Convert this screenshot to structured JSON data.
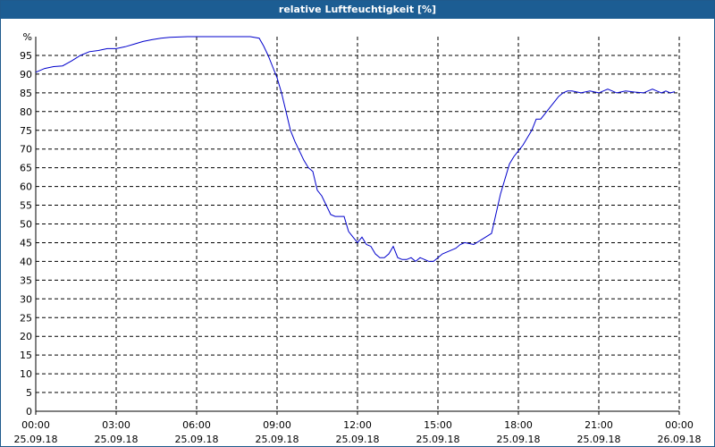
{
  "window": {
    "title": "relative Luftfeuchtigkeit [%]"
  },
  "colors": {
    "title_bar": "#1c5d93",
    "line": "#0000cc",
    "grid": "#000000",
    "background": "#ffffff"
  },
  "chart_data": {
    "type": "line",
    "title": "relative Luftfeuchtigkeit [%]",
    "ylabel": "%",
    "xlabel": "",
    "ylim": [
      0,
      100
    ],
    "y_ticks": [
      0,
      5,
      10,
      15,
      20,
      25,
      30,
      35,
      40,
      45,
      50,
      55,
      60,
      65,
      70,
      75,
      80,
      85,
      90,
      95
    ],
    "xlim": [
      "25.09.18 00:00",
      "26.09.18 00:00"
    ],
    "x_ticks": [
      {
        "time": "00:00",
        "date": "25.09.18"
      },
      {
        "time": "03:00",
        "date": "25.09.18"
      },
      {
        "time": "06:00",
        "date": "25.09.18"
      },
      {
        "time": "09:00",
        "date": "25.09.18"
      },
      {
        "time": "12:00",
        "date": "25.09.18"
      },
      {
        "time": "15:00",
        "date": "25.09.18"
      },
      {
        "time": "18:00",
        "date": "25.09.18"
      },
      {
        "time": "21:00",
        "date": "25.09.18"
      },
      {
        "time": "00:00",
        "date": "26.09.18"
      }
    ],
    "grid": true,
    "series": [
      {
        "x": [
          "00:00",
          "00:20",
          "00:40",
          "01:00",
          "01:20",
          "01:40",
          "02:00",
          "02:20",
          "02:40",
          "03:00",
          "03:20",
          "03:40",
          "04:00",
          "04:20",
          "04:40",
          "05:00",
          "05:20",
          "05:40",
          "06:00",
          "06:20",
          "06:40",
          "07:00",
          "07:20",
          "07:40",
          "08:00",
          "08:20",
          "08:30",
          "08:40",
          "08:50",
          "09:00",
          "09:10",
          "09:20",
          "09:30",
          "09:40",
          "09:50",
          "10:00",
          "10:10",
          "10:20",
          "10:30",
          "10:40",
          "10:50",
          "11:00",
          "11:10",
          "11:20",
          "11:30",
          "11:40",
          "11:50",
          "12:00",
          "12:10",
          "12:20",
          "12:30",
          "12:40",
          "12:50",
          "13:00",
          "13:10",
          "13:20",
          "13:30",
          "13:40",
          "13:50",
          "14:00",
          "14:10",
          "14:20",
          "14:30",
          "14:40",
          "14:50",
          "15:00",
          "15:10",
          "15:20",
          "15:30",
          "15:40",
          "15:50",
          "16:00",
          "16:20",
          "16:40",
          "17:00",
          "17:20",
          "17:40",
          "17:50",
          "18:00",
          "18:10",
          "18:20",
          "18:30",
          "18:40",
          "18:50",
          "19:00",
          "19:10",
          "19:20",
          "19:30",
          "19:40",
          "19:50",
          "20:00",
          "20:20",
          "20:40",
          "21:00",
          "21:20",
          "21:40",
          "22:00",
          "22:20",
          "22:40",
          "23:00",
          "23:10",
          "23:20",
          "23:30",
          "23:40",
          "23:50"
        ],
        "values": [
          90.5,
          91.5,
          92,
          92.2,
          93.5,
          95,
          96,
          96.3,
          96.8,
          96.8,
          97.3,
          98,
          98.7,
          99.2,
          99.6,
          99.8,
          99.9,
          100,
          100,
          100,
          100,
          100,
          100,
          100,
          100,
          99.6,
          97.5,
          95,
          92,
          89,
          85,
          80,
          75,
          72,
          69.5,
          67,
          65,
          64,
          59,
          57.5,
          55,
          52.5,
          52,
          52,
          52,
          48,
          46.5,
          45,
          46.5,
          44.5,
          44,
          42,
          41,
          41,
          42,
          44,
          41,
          40.5,
          40.5,
          41,
          40,
          41,
          40.5,
          40,
          40,
          41,
          42,
          42.5,
          43,
          43.5,
          44.5,
          45,
          44.5,
          46,
          47.5,
          58,
          66,
          68,
          69.5,
          71,
          73,
          75,
          78,
          78,
          79.5,
          81,
          82.5,
          84,
          85,
          85.5,
          85.5,
          85,
          85.5,
          85,
          86,
          85,
          85.5,
          85.2,
          85,
          86,
          85.5,
          85,
          85.5,
          85,
          85.3
        ]
      }
    ]
  }
}
